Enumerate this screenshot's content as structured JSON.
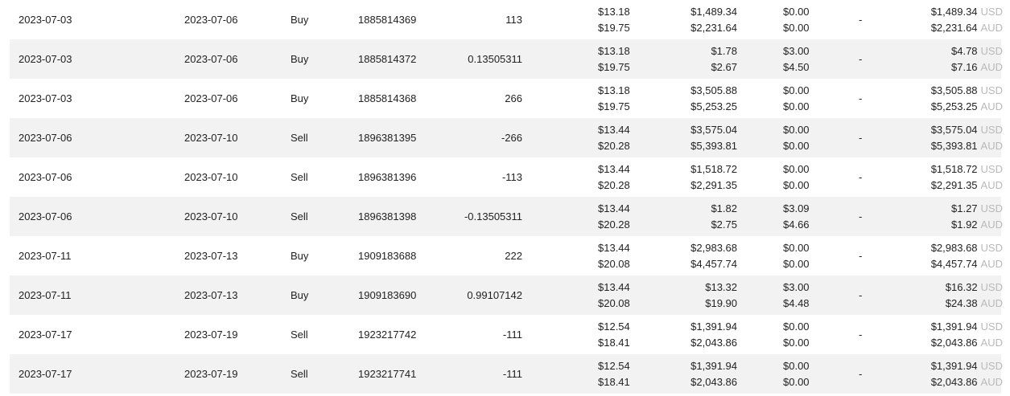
{
  "currencies": {
    "usd": "USD",
    "aud": "AUD"
  },
  "dash": "-",
  "rows": [
    {
      "date": "2023-07-03",
      "settle": "2023-07-06",
      "type": "Buy",
      "id": "1885814369",
      "qty": "113",
      "price_usd": "$13.18",
      "price_aud": "$19.75",
      "value_usd": "$1,489.34",
      "value_aud": "$2,231.64",
      "fee_usd": "$0.00",
      "fee_aud": "$0.00",
      "total_usd": "$1,489.34",
      "total_aud": "$2,231.64"
    },
    {
      "date": "2023-07-03",
      "settle": "2023-07-06",
      "type": "Buy",
      "id": "1885814372",
      "qty": "0.13505311",
      "price_usd": "$13.18",
      "price_aud": "$19.75",
      "value_usd": "$1.78",
      "value_aud": "$2.67",
      "fee_usd": "$3.00",
      "fee_aud": "$4.50",
      "total_usd": "$4.78",
      "total_aud": "$7.16"
    },
    {
      "date": "2023-07-03",
      "settle": "2023-07-06",
      "type": "Buy",
      "id": "1885814368",
      "qty": "266",
      "price_usd": "$13.18",
      "price_aud": "$19.75",
      "value_usd": "$3,505.88",
      "value_aud": "$5,253.25",
      "fee_usd": "$0.00",
      "fee_aud": "$0.00",
      "total_usd": "$3,505.88",
      "total_aud": "$5,253.25"
    },
    {
      "date": "2023-07-06",
      "settle": "2023-07-10",
      "type": "Sell",
      "id": "1896381395",
      "qty": "-266",
      "price_usd": "$13.44",
      "price_aud": "$20.28",
      "value_usd": "$3,575.04",
      "value_aud": "$5,393.81",
      "fee_usd": "$0.00",
      "fee_aud": "$0.00",
      "total_usd": "$3,575.04",
      "total_aud": "$5,393.81"
    },
    {
      "date": "2023-07-06",
      "settle": "2023-07-10",
      "type": "Sell",
      "id": "1896381396",
      "qty": "-113",
      "price_usd": "$13.44",
      "price_aud": "$20.28",
      "value_usd": "$1,518.72",
      "value_aud": "$2,291.35",
      "fee_usd": "$0.00",
      "fee_aud": "$0.00",
      "total_usd": "$1,518.72",
      "total_aud": "$2,291.35"
    },
    {
      "date": "2023-07-06",
      "settle": "2023-07-10",
      "type": "Sell",
      "id": "1896381398",
      "qty": "-0.13505311",
      "price_usd": "$13.44",
      "price_aud": "$20.28",
      "value_usd": "$1.82",
      "value_aud": "$2.75",
      "fee_usd": "$3.09",
      "fee_aud": "$4.66",
      "total_usd": "$1.27",
      "total_aud": "$1.92"
    },
    {
      "date": "2023-07-11",
      "settle": "2023-07-13",
      "type": "Buy",
      "id": "1909183688",
      "qty": "222",
      "price_usd": "$13.44",
      "price_aud": "$20.08",
      "value_usd": "$2,983.68",
      "value_aud": "$4,457.74",
      "fee_usd": "$0.00",
      "fee_aud": "$0.00",
      "total_usd": "$2,983.68",
      "total_aud": "$4,457.74"
    },
    {
      "date": "2023-07-11",
      "settle": "2023-07-13",
      "type": "Buy",
      "id": "1909183690",
      "qty": "0.99107142",
      "price_usd": "$13.44",
      "price_aud": "$20.08",
      "value_usd": "$13.32",
      "value_aud": "$19.90",
      "fee_usd": "$3.00",
      "fee_aud": "$4.48",
      "total_usd": "$16.32",
      "total_aud": "$24.38"
    },
    {
      "date": "2023-07-17",
      "settle": "2023-07-19",
      "type": "Sell",
      "id": "1923217742",
      "qty": "-111",
      "price_usd": "$12.54",
      "price_aud": "$18.41",
      "value_usd": "$1,391.94",
      "value_aud": "$2,043.86",
      "fee_usd": "$0.00",
      "fee_aud": "$0.00",
      "total_usd": "$1,391.94",
      "total_aud": "$2,043.86"
    },
    {
      "date": "2023-07-17",
      "settle": "2023-07-19",
      "type": "Sell",
      "id": "1923217741",
      "qty": "-111",
      "price_usd": "$12.54",
      "price_aud": "$18.41",
      "value_usd": "$1,391.94",
      "value_aud": "$2,043.86",
      "fee_usd": "$0.00",
      "fee_aud": "$0.00",
      "total_usd": "$1,391.94",
      "total_aud": "$2,043.86"
    }
  ]
}
